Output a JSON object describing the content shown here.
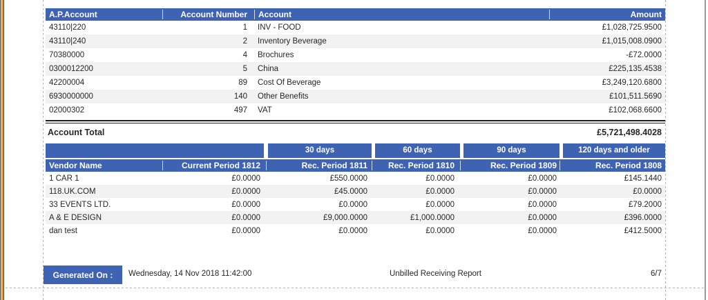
{
  "colors": {
    "header_blue": "#3d63b2",
    "row_alt": "#f2f2f2"
  },
  "table1": {
    "headers": {
      "ap_account": "A.P.Account",
      "account_number": "Account Number",
      "account": "Account",
      "amount": "Amount"
    },
    "rows": [
      {
        "ap": "43110|220",
        "num": "1",
        "name": "INV - FOOD",
        "amount": "£1,028,725.9500"
      },
      {
        "ap": "43110|240",
        "num": "2",
        "name": "Inventory Beverage",
        "amount": "£1,015,008.0900"
      },
      {
        "ap": "70380000",
        "num": "4",
        "name": "Brochures",
        "amount": "-£72.0000"
      },
      {
        "ap": "0300012200",
        "num": "5",
        "name": "China",
        "amount": "£225,135.4538"
      },
      {
        "ap": "42200004",
        "num": "89",
        "name": "Cost Of Beverage",
        "amount": "£3,249,120.6800"
      },
      {
        "ap": "6930000000",
        "num": "140",
        "name": "Other Benefits",
        "amount": "£101,511.5690"
      },
      {
        "ap": "02000302",
        "num": "497",
        "name": "VAT",
        "amount": "£102,068.6600"
      }
    ],
    "total_label": "Account Total",
    "total_amount": "£5,721,498.4028"
  },
  "table2": {
    "buckets": {
      "b30": "30 days",
      "b60": "60 days",
      "b90": "90 days",
      "b120": "120 days and older"
    },
    "headers": {
      "vendor": "Vendor Name",
      "current": "Current Period 1812",
      "p1811": "Rec. Period 1811",
      "p1810": "Rec. Period 1810",
      "p1809": "Rec. Period 1809",
      "p1808": "Rec. Period 1808"
    },
    "rows": [
      {
        "vendor": "1 CAR 1",
        "current": "£0.0000",
        "p1811": "£550.0000",
        "p1810": "£0.0000",
        "p1809": "£0.0000",
        "p1808": "£145.1440"
      },
      {
        "vendor": "118.UK.COM",
        "current": "£0.0000",
        "p1811": "£45.0000",
        "p1810": "£0.0000",
        "p1809": "£0.0000",
        "p1808": "£0.0000"
      },
      {
        "vendor": "33 EVENTS LTD.",
        "current": "£0.0000",
        "p1811": "£0.0000",
        "p1810": "£0.0000",
        "p1809": "£0.0000",
        "p1808": "£79.2000"
      },
      {
        "vendor": "A & E DESIGN",
        "current": "£0.0000",
        "p1811": "£9,000.0000",
        "p1810": "£1,000.0000",
        "p1809": "£0.0000",
        "p1808": "£396.0000"
      },
      {
        "vendor": "dan test",
        "current": "£0.0000",
        "p1811": "£0.0000",
        "p1810": "£0.0000",
        "p1809": "£0.0000",
        "p1808": "£412.5000"
      }
    ]
  },
  "footer": {
    "generated_label": "Generated On :",
    "generated_value": "Wednesday, 14 Nov 2018 11:42:00",
    "report_name": "Unbilled Receiving Report",
    "page": "6/7"
  }
}
